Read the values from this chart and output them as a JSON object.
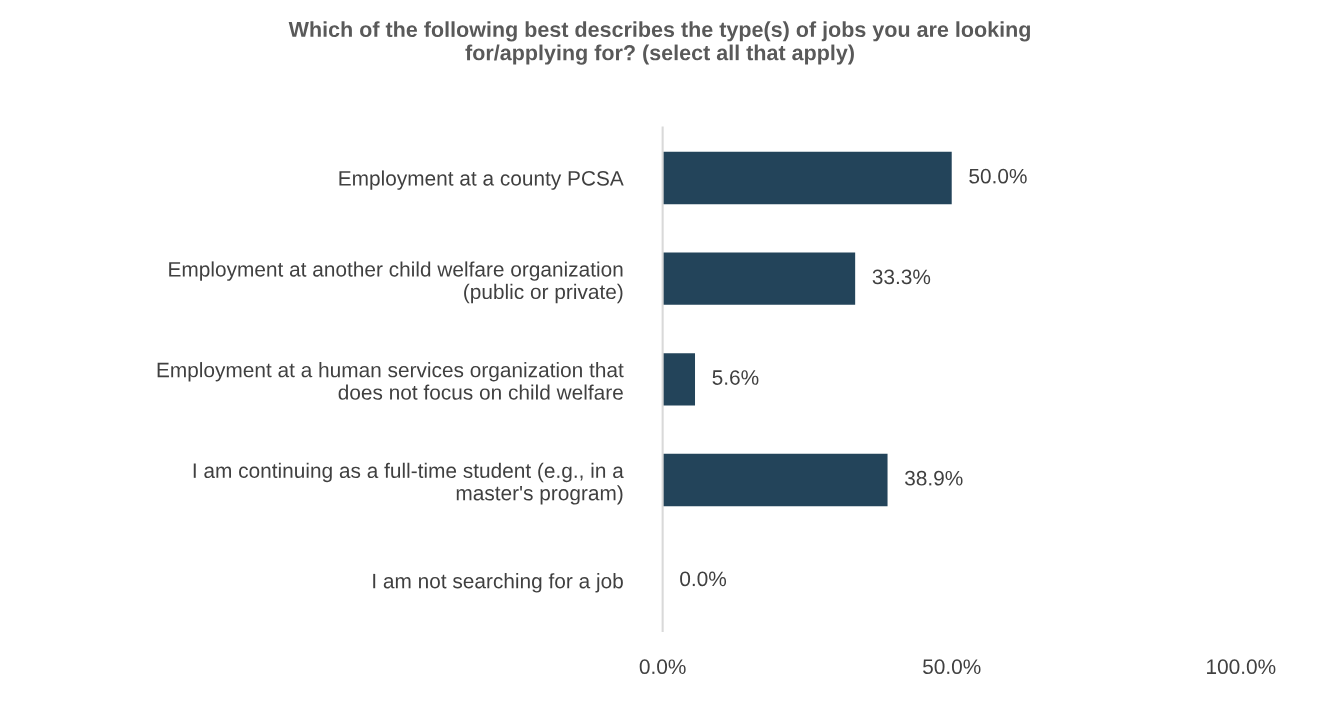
{
  "chart_data": {
    "type": "bar",
    "orientation": "horizontal",
    "title": "Which of the following best describes the type(s) of jobs you are looking\nfor/applying for? (select all that apply)",
    "categories": [
      "Employment at a county PCSA",
      "Employment at another child welfare organization\n(public or private)",
      "Employment at a human services organization that\ndoes not focus on child welfare",
      "I am continuing as a full-time student (e.g., in a\nmaster's program)",
      "I am not searching for a job"
    ],
    "values": [
      50.0,
      33.3,
      5.6,
      38.9,
      0.0
    ],
    "value_labels": [
      "50.0%",
      "33.3%",
      "5.6%",
      "38.9%",
      "0.0%"
    ],
    "color": "#23445a",
    "xlim": [
      0,
      100
    ],
    "xticks": [
      {
        "value": 0,
        "label": "0.0%"
      },
      {
        "value": 50,
        "label": "50.0%"
      },
      {
        "value": 100,
        "label": "100.0%"
      }
    ],
    "grid": false,
    "legend": false
  }
}
